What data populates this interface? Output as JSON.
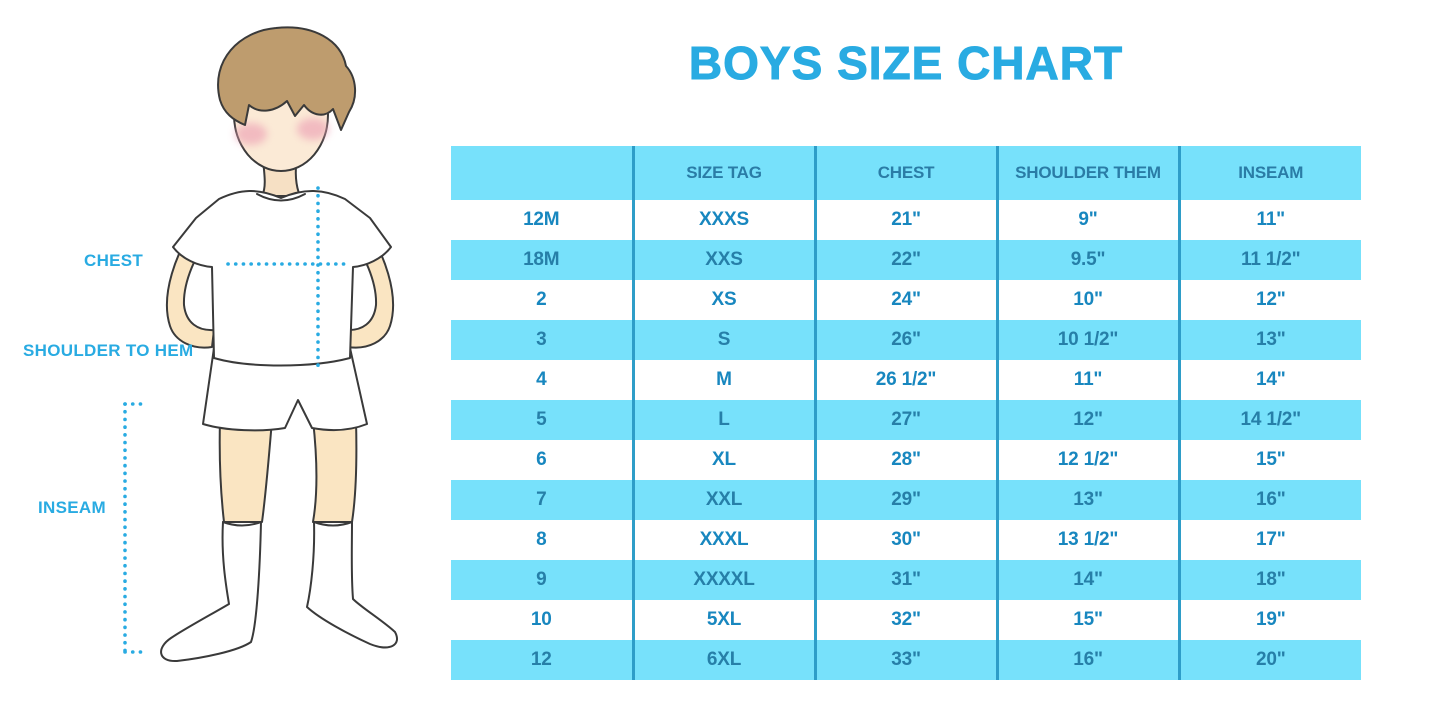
{
  "page": {
    "title": "BOYS SIZE CHART"
  },
  "figure": {
    "description": "cartoon boy in white t-shirt, shorts and knee socks with dotted measurement guides",
    "labels": {
      "chest": "CHEST",
      "shoulder_to_hem": "SHOULDER TO HEM",
      "inseam": "INSEAM"
    }
  },
  "table": {
    "headers": [
      "",
      "SIZE TAG",
      "CHEST",
      "SHOULDER THEM",
      "INSEAM"
    ],
    "rows": [
      [
        "12M",
        "XXXS",
        "21\"",
        "9\"",
        "11\""
      ],
      [
        "18M",
        "XXS",
        "22\"",
        "9.5\"",
        "11 1/2\""
      ],
      [
        "2",
        "XS",
        "24\"",
        "10\"",
        "12\""
      ],
      [
        "3",
        "S",
        "26\"",
        "10 1/2\"",
        "13\""
      ],
      [
        "4",
        "M",
        "26 1/2\"",
        "11\"",
        "14\""
      ],
      [
        "5",
        "L",
        "27\"",
        "12\"",
        "14 1/2\""
      ],
      [
        "6",
        "XL",
        "28\"",
        "12 1/2\"",
        "15\""
      ],
      [
        "7",
        "XXL",
        "29\"",
        "13\"",
        "16\""
      ],
      [
        "8",
        "XXXL",
        "30\"",
        "13 1/2\"",
        "17\""
      ],
      [
        "9",
        "XXXXL",
        "31\"",
        "14\"",
        "18\""
      ],
      [
        "10",
        "5XL",
        "32\"",
        "15\"",
        "19\""
      ],
      [
        "12",
        "6XL",
        "33\"",
        "16\"",
        "20\""
      ]
    ]
  },
  "colors": {
    "accent_blue": "#29ABE2",
    "row_cyan": "#77E1FB",
    "divider_blue": "#2E9DC8",
    "text_on_white_row": "#1887BF",
    "text_on_cyan_row": "#267FA8",
    "header_text": "#2A7CA6",
    "skin": "#FAE5C2",
    "hair_brown": "#BE9C6E"
  }
}
